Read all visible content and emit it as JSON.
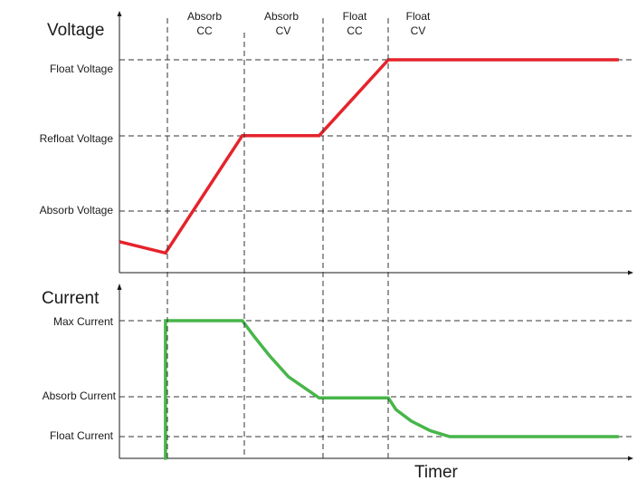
{
  "chart_data": [
    {
      "type": "line",
      "ylabel": "Voltage",
      "xlabel": "",
      "phases": [
        {
          "line1": "Absorb",
          "line2": "CC"
        },
        {
          "line1": "Absorb",
          "line2": "CV"
        },
        {
          "line1": "Float",
          "line2": "CC"
        },
        {
          "line1": "Float",
          "line2": "CV"
        }
      ],
      "levels": [
        {
          "label": "Float Voltage",
          "value": 3
        },
        {
          "label": "Refloat Voltage",
          "value": 2
        },
        {
          "label": "Absorb Voltage",
          "value": 1
        }
      ],
      "ylim": [
        0,
        3.4
      ],
      "series": [
        {
          "color": "#e5232b",
          "x": [
            0,
            0.6,
            1.6,
            2.6,
            3.5,
            6.5
          ],
          "y": [
            0.6,
            0.45,
            2,
            2,
            3,
            3
          ]
        }
      ]
    },
    {
      "type": "line",
      "ylabel": "Current",
      "xlabel": "Timer",
      "levels": [
        {
          "label": "Max Current",
          "value": 3
        },
        {
          "label": "Absorb Current",
          "value": 1
        },
        {
          "label": "Float Current",
          "value": 0
        }
      ],
      "ylim": [
        -0.6,
        3.5
      ],
      "series": [
        {
          "color": "#47b649",
          "x": [
            0.6,
            0.6,
            1.6,
            1.75,
            1.95,
            2.2,
            2.6,
            3.5,
            3.6,
            3.8,
            4.05,
            4.3,
            6.5
          ],
          "y": [
            -0.6,
            3,
            3,
            2.6,
            2.1,
            1.55,
            1,
            1,
            0.7,
            0.4,
            0.15,
            0,
            0
          ]
        }
      ]
    }
  ],
  "colors": {
    "axis": "#1a1a1a",
    "grid": "#333333"
  }
}
